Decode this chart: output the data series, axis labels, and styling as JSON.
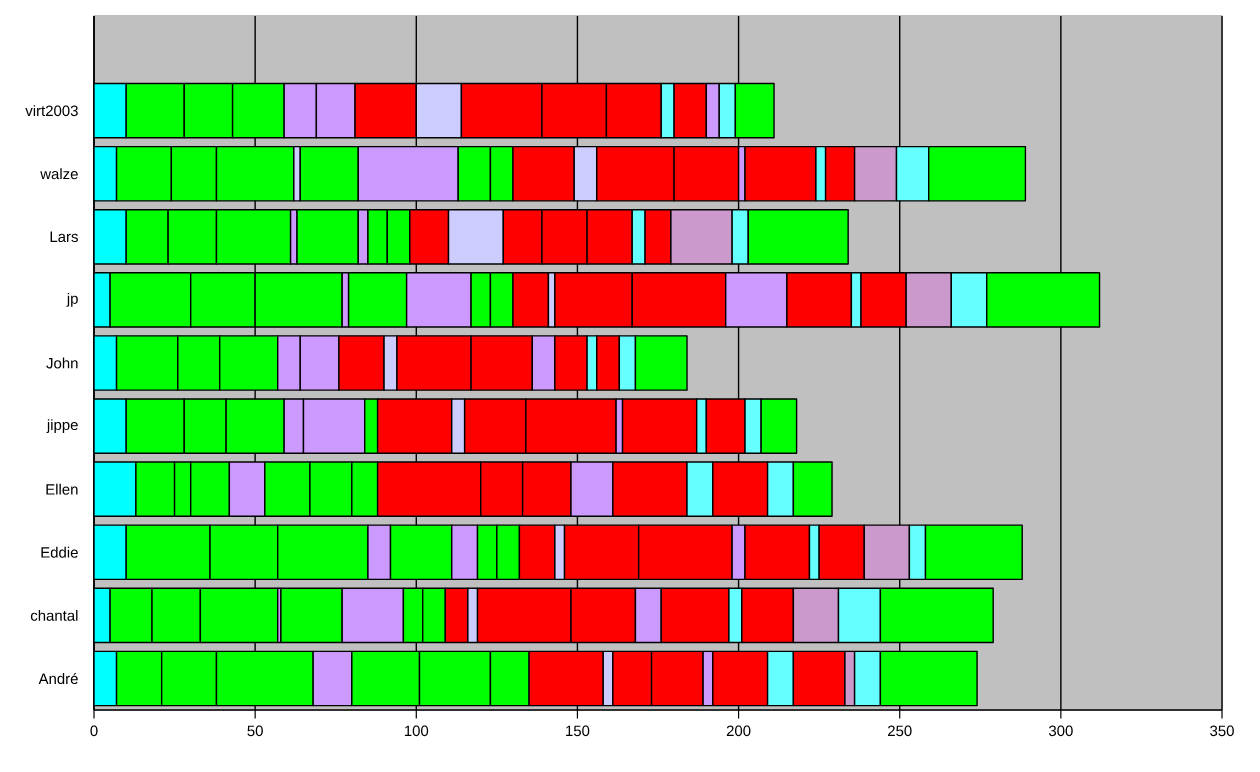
{
  "chart_data": {
    "type": "bar",
    "orientation": "horizontal",
    "stacked": true,
    "grid": "x",
    "categories": [
      null,
      "virt2003",
      "walze",
      "Lars",
      "jp",
      "John",
      "jippe",
      "Ellen",
      "Eddie",
      "chantal",
      "André"
    ],
    "xlim": [
      0,
      350
    ],
    "xticks": [
      0,
      50,
      100,
      150,
      200,
      250,
      300,
      350
    ],
    "series": [
      {
        "values": [
          null,
          10,
          7,
          10,
          5,
          7,
          10,
          13,
          10,
          5,
          7
        ],
        "colors": [
          null,
          "#00ffff",
          "#00ffff",
          "#00ffff",
          "#00ffff",
          "#00ffff",
          "#00ffff",
          "#00ffff",
          "#00ffff",
          "#00ffff",
          "#00ffff"
        ]
      },
      {
        "values": [
          null,
          18,
          17,
          13,
          25,
          19,
          18,
          12,
          26,
          13,
          14
        ],
        "colors": [
          null,
          "#00ff00",
          "#00ff00",
          "#00ff00",
          "#00ff00",
          "#00ff00",
          "#00ff00",
          "#00ff00",
          "#00ff00",
          "#00ff00",
          "#00ff00"
        ]
      },
      {
        "values": [
          null,
          15,
          14,
          15,
          20,
          13,
          13,
          5,
          21,
          15,
          17
        ],
        "colors": [
          null,
          "#00ff00",
          "#00ff00",
          "#00ff00",
          "#00ff00",
          "#00ff00",
          "#00ff00",
          "#00ff00",
          "#00ff00",
          "#00ff00",
          "#00ff00"
        ]
      },
      {
        "values": [
          null,
          16,
          24,
          23,
          27,
          18,
          18,
          12,
          28,
          24,
          30
        ],
        "colors": [
          null,
          "#00ff00",
          "#00ff00",
          "#00ff00",
          "#00ff00",
          "#00ff00",
          "#00ff00",
          "#00ff00",
          "#00ff00",
          "#00ff00",
          "#00ff00"
        ]
      },
      {
        "values": [
          null,
          10,
          2,
          2,
          2,
          7,
          6,
          11,
          7,
          1,
          12
        ],
        "colors": [
          null,
          "#cc99ff",
          "#ccccff",
          "#cc99ff",
          "#cc99ff",
          "#cc99ff",
          "#cc99ff",
          "#cc99ff",
          "#cc99ff",
          "#cc99ff",
          "#cc99ff"
        ]
      },
      {
        "values": [
          null,
          12,
          18,
          19,
          18,
          12,
          19,
          14,
          19,
          19,
          21
        ],
        "colors": [
          null,
          "#cc99ff",
          "#00ff00",
          "#00ff00",
          "#00ff00",
          "#cc99ff",
          "#cc99ff",
          "#00ff00",
          "#00ff00",
          "#00ff00",
          "#00ff00"
        ]
      },
      {
        "values": [
          null,
          19,
          31,
          3,
          20,
          14,
          4,
          13,
          8,
          19,
          22
        ],
        "colors": [
          null,
          "#ff0000",
          "#cc99ff",
          "#cc99ff",
          "#cc99ff",
          "#ff0000",
          "#00ff00",
          "#00ff00",
          "#cc99ff",
          "#cc99ff",
          "#00ff00"
        ]
      },
      {
        "values": [
          null,
          14,
          10,
          6,
          6,
          4,
          23,
          8,
          6,
          6,
          12
        ],
        "colors": [
          null,
          "#ccccff",
          "#00ff00",
          "#00ff00",
          "#00ff00",
          "#ccccff",
          "#ff0000",
          "#00ff00",
          "#00ff00",
          "#00ff00",
          "#00ff00"
        ]
      },
      {
        "values": [
          null,
          25,
          7,
          7,
          7,
          23,
          4,
          32,
          7,
          7,
          23
        ],
        "colors": [
          null,
          "#ff0000",
          "#00ff00",
          "#00ff00",
          "#00ff00",
          "#ff0000",
          "#ccccff",
          "#ff0000",
          "#00ff00",
          "#00ff00",
          "#ff0000"
        ]
      },
      {
        "values": [
          null,
          20,
          19,
          12,
          11,
          19,
          19,
          13,
          11,
          7,
          3
        ],
        "colors": [
          null,
          "#ff0000",
          "#ff0000",
          "#ff0000",
          "#ff0000",
          "#ff0000",
          "#ff0000",
          "#ff0000",
          "#ff0000",
          "#ff0000",
          "#ccccff"
        ]
      },
      {
        "values": [
          null,
          17,
          7,
          17,
          2,
          7,
          28,
          15,
          3,
          3,
          12
        ],
        "colors": [
          null,
          "#ff0000",
          "#ccccff",
          "#ccccff",
          "#ccccff",
          "#cc99ff",
          "#ff0000",
          "#ff0000",
          "#ccccff",
          "#ccccff",
          "#ff0000"
        ]
      },
      {
        "values": [
          null,
          4,
          24,
          12,
          24,
          10,
          2,
          13,
          23,
          29,
          16
        ],
        "colors": [
          null,
          "#66ffff",
          "#ff0000",
          "#ff0000",
          "#ff0000",
          "#ff0000",
          "#cc99ff",
          "#cc99ff",
          "#ff0000",
          "#ff0000",
          "#ff0000"
        ]
      },
      {
        "values": [
          null,
          10,
          20,
          14,
          29,
          3,
          23,
          23,
          29,
          20,
          3
        ],
        "colors": [
          null,
          "#ff0000",
          "#ff0000",
          "#ff0000",
          "#ff0000",
          "#66ffff",
          "#ff0000",
          "#ff0000",
          "#ff0000",
          "#ff0000",
          "#cc99ff"
        ]
      },
      {
        "values": [
          null,
          4,
          2,
          14,
          19,
          7,
          3,
          8,
          4,
          8,
          17
        ],
        "colors": [
          null,
          "#cc99ff",
          "#cc99ff",
          "#ff0000",
          "#cc99ff",
          "#ff0000",
          "#66ffff",
          "#66ffff",
          "#cc99ff",
          "#cc99ff",
          "#ff0000"
        ]
      },
      {
        "values": [
          null,
          5,
          22,
          4,
          20,
          5,
          12,
          17,
          20,
          21,
          8
        ],
        "colors": [
          null,
          "#66ffff",
          "#ff0000",
          "#66ffff",
          "#ff0000",
          "#66ffff",
          "#ff0000",
          "#ff0000",
          "#ff0000",
          "#ff0000",
          "#66ffff"
        ]
      },
      {
        "values": [
          null,
          12,
          3,
          8,
          3,
          16,
          5,
          8,
          3,
          4,
          16
        ],
        "colors": [
          null,
          "#00ff00",
          "#66ffff",
          "#ff0000",
          "#66ffff",
          "#00ff00",
          "#66ffff",
          "#66ffff",
          "#66ffff",
          "#66ffff",
          "#ff0000"
        ]
      },
      {
        "values": [
          null,
          null,
          9,
          19,
          14,
          null,
          11,
          12,
          14,
          16,
          3
        ],
        "colors": [
          null,
          null,
          "#ff0000",
          "#cc99cc",
          "#ff0000",
          null,
          "#00ff00",
          "#00ff00",
          "#ff0000",
          "#ff0000",
          "#cc99cc"
        ]
      },
      {
        "values": [
          null,
          null,
          13,
          5,
          14,
          null,
          null,
          null,
          14,
          14,
          8
        ],
        "colors": [
          null,
          null,
          "#cc99cc",
          "#66ffff",
          "#cc99cc",
          null,
          null,
          null,
          "#cc99cc",
          "#cc99cc",
          "#66ffff"
        ]
      },
      {
        "values": [
          null,
          null,
          10,
          31,
          11,
          null,
          null,
          null,
          5,
          13,
          30
        ],
        "colors": [
          null,
          null,
          "#66ffff",
          "#00ff00",
          "#66ffff",
          null,
          null,
          null,
          "#66ffff",
          "#66ffff",
          "#00ff00"
        ]
      },
      {
        "values": [
          null,
          null,
          30,
          null,
          35,
          null,
          null,
          null,
          30,
          35,
          null
        ],
        "colors": [
          null,
          null,
          "#00ff00",
          null,
          "#00ff00",
          null,
          null,
          null,
          "#00ff00",
          "#00ff00",
          null
        ]
      }
    ]
  }
}
